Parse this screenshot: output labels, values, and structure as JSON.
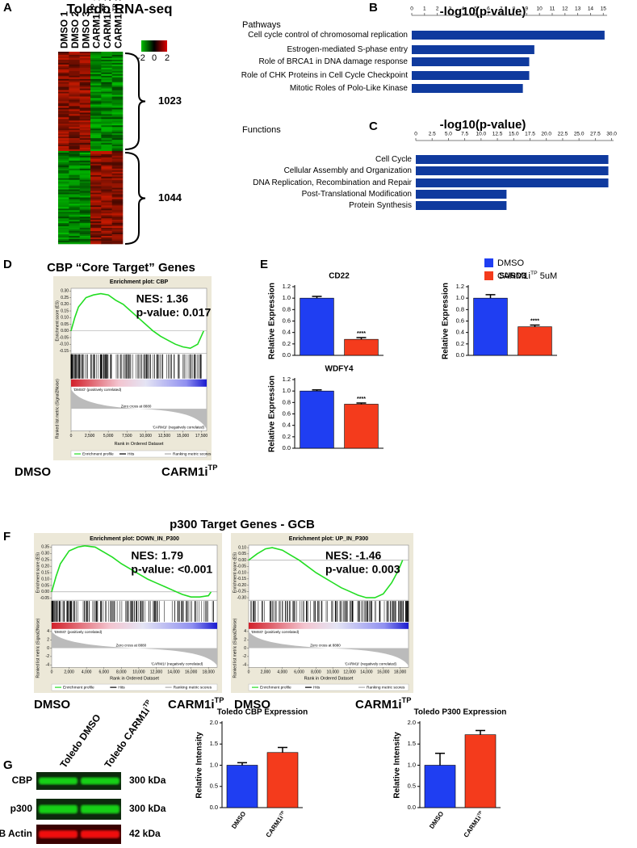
{
  "panel_labels": [
    "A",
    "B",
    "C",
    "D",
    "E",
    "F",
    "G"
  ],
  "heatmap": {
    "title": "Toledo RNA-seq",
    "columns": [
      {
        "text": "DMSO 1"
      },
      {
        "text": "DMSO 2"
      },
      {
        "text": "DMSO 3"
      },
      {
        "text": "CARM1i",
        "sup": "TP",
        "after": " 1"
      },
      {
        "text": "CARM1i",
        "sup": "TP",
        "after": " 2"
      },
      {
        "text": "CARM1i",
        "sup": "TP",
        "after": " 3"
      }
    ],
    "scale_ticks": [
      -2,
      0,
      2
    ],
    "clusters": [
      1023,
      1044
    ]
  },
  "figure_titles": [
    "CBP “Core Target” Genes",
    "p300 Target Genes - GCB"
  ],
  "legend": [
    {
      "name": {
        "text": "DMSO"
      },
      "color": "#1f3ef2"
    },
    {
      "name": {
        "text": "CARM1i",
        "sup": "TP",
        "after": " 5uM"
      },
      "color": "#f43b1c"
    }
  ],
  "blot": {
    "lanes": [
      {
        "text": "Toledo DMSO"
      },
      {
        "text": "Toledo CARM1i",
        "sup": "TP"
      }
    ],
    "proteins": [
      "CBP",
      "p300",
      "B Actin"
    ],
    "sizes": [
      "300 kDa",
      "300 kDa",
      "42 kDa"
    ]
  },
  "chart_data": [
    {
      "type": "hbar",
      "title": "-log10(p-value)",
      "subtitle": "Pathways",
      "color": "#0f3a9e",
      "categories": [
        "Cell cycle control of chromosomal replication",
        "Estrogen-mediated S-phase entry",
        "Role of BRCA1 in DNA damage response",
        "Role of CHK Proteins in Cell Cycle Checkpoint",
        "Mitotic Roles of Polo-Like Kinase"
      ],
      "values": [
        15.1,
        9.6,
        9.2,
        9.2,
        8.7
      ],
      "xlim": [
        0,
        15.3
      ],
      "xticks": [
        0,
        1,
        2,
        3,
        4,
        5,
        6,
        7,
        8,
        9,
        10,
        11,
        12,
        13,
        14,
        15
      ]
    },
    {
      "type": "hbar",
      "title": "-log10(p-value)",
      "subtitle": "Functions",
      "color": "#0f3a9e",
      "categories": [
        "Cell Cycle",
        "Cellular Assembly and Organization",
        "DNA Replication, Recombination and Repair",
        "Post-Translational Modification",
        "Protein Synthesis"
      ],
      "values": [
        29.5,
        29.5,
        29.5,
        13.9,
        13.9
      ],
      "xlim": [
        0,
        30.3
      ],
      "xticks": [
        0,
        2.5,
        {
          "value": 5,
          "label": "5.0"
        },
        7.5,
        {
          "value": 10,
          "label": "10.0"
        },
        12.5,
        {
          "value": 15,
          "label": "15.0"
        },
        17.5,
        {
          "value": 20,
          "label": "20.0"
        },
        22.5,
        {
          "value": 25,
          "label": "25.0"
        },
        27.5,
        {
          "value": 30,
          "label": "30.0"
        }
      ]
    },
    {
      "type": "gsea",
      "title": "Enrichment plot: CBP",
      "color": "#22dd22",
      "x": [
        0,
        500,
        1000,
        2000,
        3000,
        4000,
        5000,
        6000,
        7000,
        8000,
        9000,
        10000,
        11000,
        12000,
        13000,
        14000,
        15000,
        16000,
        17000,
        17800
      ],
      "values": [
        0,
        0.1,
        0.18,
        0.25,
        0.27,
        0.28,
        0.27,
        0.23,
        0.2,
        0.15,
        0.1,
        0.05,
        0,
        -0.04,
        -0.07,
        -0.1,
        -0.12,
        -0.13,
        -0.1,
        0
      ],
      "xlim": [
        0,
        18200
      ],
      "xticks": [
        0,
        {
          "value": 2500,
          "label": "2,500"
        },
        {
          "value": 5000,
          "label": "5,000"
        },
        {
          "value": 7500,
          "label": "7,500"
        },
        {
          "value": 10000,
          "label": "10,000"
        },
        {
          "value": 12500,
          "label": "12,500"
        },
        {
          "value": 15000,
          "label": "15,000"
        },
        {
          "value": 17500,
          "label": "17,500"
        }
      ],
      "ylim": [
        -0.17,
        0.32
      ],
      "yticks": [
        {
          "value": 0.3,
          "label": "0.30"
        },
        0.25,
        {
          "value": 0.2,
          "label": "0.20"
        },
        0.15,
        {
          "value": 0.1,
          "label": "0.10"
        },
        0.05,
        {
          "value": 0,
          "label": "0.00"
        },
        -0.05,
        {
          "value": -0.1,
          "label": "-0.10"
        },
        -0.15
      ],
      "ylabel": "Enrichment score (ES)",
      "metric_label": "Ranked list metric (Signal2Noise)",
      "xlabel": "Rank in Ordered Dataset",
      "pos_label": "'DMSO' (positively correlated)",
      "neg_label": "'CARM1i' (negatively correlated)",
      "zero_cross": "Zero cross at 8880",
      "legend": [
        "Enrichment profile",
        "Hits",
        "Ranking metric scores"
      ],
      "annotations": [
        "NES: 1.36",
        "p-value: 0.017"
      ],
      "conditions": [
        {
          "text": "DMSO"
        },
        {
          "text": "CARM1i",
          "sup": "TP"
        }
      ]
    },
    {
      "type": "bar",
      "title": "CD22",
      "ylabel": "Relative Expression",
      "categories": [
        null,
        null
      ],
      "colors": [
        "#1f3ef2",
        "#f43b1c"
      ],
      "values": [
        1.0,
        0.28
      ],
      "errors": [
        0.03,
        0.03
      ],
      "annotation": "****",
      "ylim": [
        0,
        1.2
      ],
      "yticks": [
        {
          "value": 0,
          "label": "0.0"
        },
        0.2,
        0.4,
        0.6,
        0.8,
        {
          "value": 1,
          "label": "1.0"
        },
        1.2
      ]
    },
    {
      "type": "bar",
      "title": "SUSD3",
      "ylabel": "Relative Expression",
      "categories": [
        null,
        null
      ],
      "colors": [
        "#1f3ef2",
        "#f43b1c"
      ],
      "values": [
        1.0,
        0.5
      ],
      "errors": [
        0.06,
        0.03
      ],
      "annotation": "****",
      "ylim": [
        0,
        1.2
      ],
      "yticks": [
        {
          "value": 0,
          "label": "0.0"
        },
        0.2,
        0.4,
        0.6,
        0.8,
        {
          "value": 1,
          "label": "1.0"
        },
        1.2
      ]
    },
    {
      "type": "bar",
      "title": "WDFY4",
      "ylabel": "Relative Expression",
      "categories": [
        null,
        null
      ],
      "colors": [
        "#1f3ef2",
        "#f43b1c"
      ],
      "values": [
        1.0,
        0.77
      ],
      "errors": [
        0.02,
        0.02
      ],
      "annotation": "****",
      "ylim": [
        0,
        1.2
      ],
      "yticks": [
        {
          "value": 0,
          "label": "0.0"
        },
        0.2,
        0.4,
        0.6,
        0.8,
        {
          "value": 1,
          "label": "1.0"
        },
        1.2
      ]
    },
    {
      "type": "gsea",
      "title": "Enrichment plot: DOWN_IN_P300",
      "color": "#22dd22",
      "x": [
        0,
        500,
        1000,
        2000,
        3000,
        3800,
        5000,
        6000,
        7000,
        8000,
        9000,
        10000,
        11000,
        12000,
        13000,
        14000,
        15000,
        16000,
        17000,
        18000,
        18300
      ],
      "values": [
        0,
        0.12,
        0.22,
        0.32,
        0.35,
        0.36,
        0.35,
        0.31,
        0.27,
        0.22,
        0.18,
        0.14,
        0.1,
        0.07,
        0.04,
        0.01,
        -0.02,
        -0.04,
        -0.04,
        -0.03,
        0
      ],
      "xlim": [
        0,
        19000
      ],
      "xticks": [
        0,
        {
          "value": 2000,
          "label": "2,000"
        },
        {
          "value": 4000,
          "label": "4,000"
        },
        {
          "value": 6000,
          "label": "6,000"
        },
        {
          "value": 8000,
          "label": "8,000"
        },
        {
          "value": 10000,
          "label": "10,000"
        },
        {
          "value": 12000,
          "label": "12,000"
        },
        {
          "value": 14000,
          "label": "14,000"
        },
        {
          "value": 16000,
          "label": "16,000"
        },
        {
          "value": 18000,
          "label": "18,000"
        }
      ],
      "ylim": [
        -0.065,
        0.365
      ],
      "yticks": [
        0.35,
        {
          "value": 0.3,
          "label": "0.30"
        },
        0.25,
        {
          "value": 0.2,
          "label": "0.20"
        },
        0.15,
        {
          "value": 0.1,
          "label": "0.10"
        },
        0.05,
        {
          "value": 0,
          "label": "0.00"
        },
        -0.05
      ],
      "metric_yticks": [
        4,
        2,
        0,
        -2,
        -4
      ],
      "ylabel": "Enrichment score (ES)",
      "metric_label": "Ranked list metric (Signal2Noise)",
      "xlabel": "Rank in Ordered Dataset",
      "pos_label": "'DMSO' (positively correlated)",
      "neg_label": "'CARM1i' (negatively correlated)",
      "zero_cross": "Zero cross at 8880",
      "legend": [
        "Enrichment profile",
        "Hits",
        "Ranking metric scores"
      ],
      "annotations": [
        "NES: 1.79",
        "p-value: <0.001"
      ],
      "conditions": [
        {
          "text": "DMSO"
        },
        {
          "text": "CARM1i",
          "sup": "TP"
        }
      ]
    },
    {
      "type": "gsea",
      "title": "Enrichment plot: UP_IN_P300",
      "color": "#22dd22",
      "x": [
        0,
        1000,
        2000,
        2800,
        4000,
        5000,
        6000,
        7000,
        8000,
        9000,
        10000,
        11000,
        12000,
        13000,
        14000,
        15000,
        16000,
        17000,
        17800,
        18300
      ],
      "values": [
        0,
        0.05,
        0.09,
        0.1,
        0.08,
        0.04,
        0,
        -0.05,
        -0.1,
        -0.14,
        -0.18,
        -0.22,
        -0.25,
        -0.28,
        -0.3,
        -0.3,
        -0.27,
        -0.18,
        -0.08,
        0
      ],
      "xlim": [
        0,
        19000
      ],
      "xticks": [
        0,
        {
          "value": 2000,
          "label": "2,000"
        },
        {
          "value": 4000,
          "label": "4,000"
        },
        {
          "value": 6000,
          "label": "6,000"
        },
        {
          "value": 8000,
          "label": "8,000"
        },
        {
          "value": 10000,
          "label": "10,000"
        },
        {
          "value": 12000,
          "label": "12,000"
        },
        {
          "value": 14000,
          "label": "14,000"
        },
        {
          "value": 16000,
          "label": "16,000"
        },
        {
          "value": 18000,
          "label": "18,000"
        }
      ],
      "ylim": [
        -0.32,
        0.12
      ],
      "yticks": [
        {
          "value": 0.1,
          "label": "0.10"
        },
        0.05,
        {
          "value": 0,
          "label": "0.00"
        },
        -0.05,
        {
          "value": -0.1,
          "label": "-0.10"
        },
        -0.15,
        {
          "value": -0.2,
          "label": "-0.20"
        },
        -0.25,
        {
          "value": -0.3,
          "label": "-0.30"
        }
      ],
      "metric_yticks": [
        4,
        2,
        0,
        -2,
        -4
      ],
      "ylabel": "Enrichment score (ES)",
      "metric_label": "Ranked list metric (Signal2Noise)",
      "xlabel": "Rank in Ordered Dataset",
      "pos_label": "'DMSO' (positively correlated)",
      "neg_label": "'CARM1i' (negatively correlated)",
      "zero_cross": "Zero cross at 8880",
      "legend": [
        "Enrichment profile",
        "Hits",
        "Ranking metric scores"
      ],
      "annotations": [
        "NES: -1.46",
        "p-value: 0.003"
      ],
      "conditions": [
        {
          "text": "DMSO"
        },
        {
          "text": "CARM1i",
          "sup": "TP"
        }
      ]
    },
    {
      "type": "bar",
      "title": "Toledo CBP Expression",
      "ylabel": "Relative Intensity",
      "categories": [
        {
          "text": "DMSO"
        },
        {
          "text": "CARM1i",
          "sup": "TP"
        }
      ],
      "colors": [
        "#1f3ef2",
        "#f43b1c"
      ],
      "values": [
        1.0,
        1.3
      ],
      "errors": [
        0.06,
        0.12
      ],
      "ylim": [
        0,
        2
      ],
      "yticks": [
        {
          "value": 0,
          "label": "0.0"
        },
        0.5,
        {
          "value": 1,
          "label": "1.0"
        },
        1.5,
        {
          "value": 2,
          "label": "2.0"
        }
      ]
    },
    {
      "type": "bar",
      "title": "Toledo P300 Expression",
      "ylabel": "Relative Intensity",
      "categories": [
        {
          "text": "DMSO"
        },
        {
          "text": "CARM1i",
          "sup": "TP"
        }
      ],
      "colors": [
        "#1f3ef2",
        "#f43b1c"
      ],
      "values": [
        1.0,
        1.72
      ],
      "errors": [
        0.28,
        0.1
      ],
      "ylim": [
        0,
        2
      ],
      "yticks": [
        {
          "value": 0,
          "label": "0.0"
        },
        0.5,
        {
          "value": 1,
          "label": "1.0"
        },
        1.5,
        {
          "value": 2,
          "label": "2.0"
        }
      ]
    }
  ]
}
